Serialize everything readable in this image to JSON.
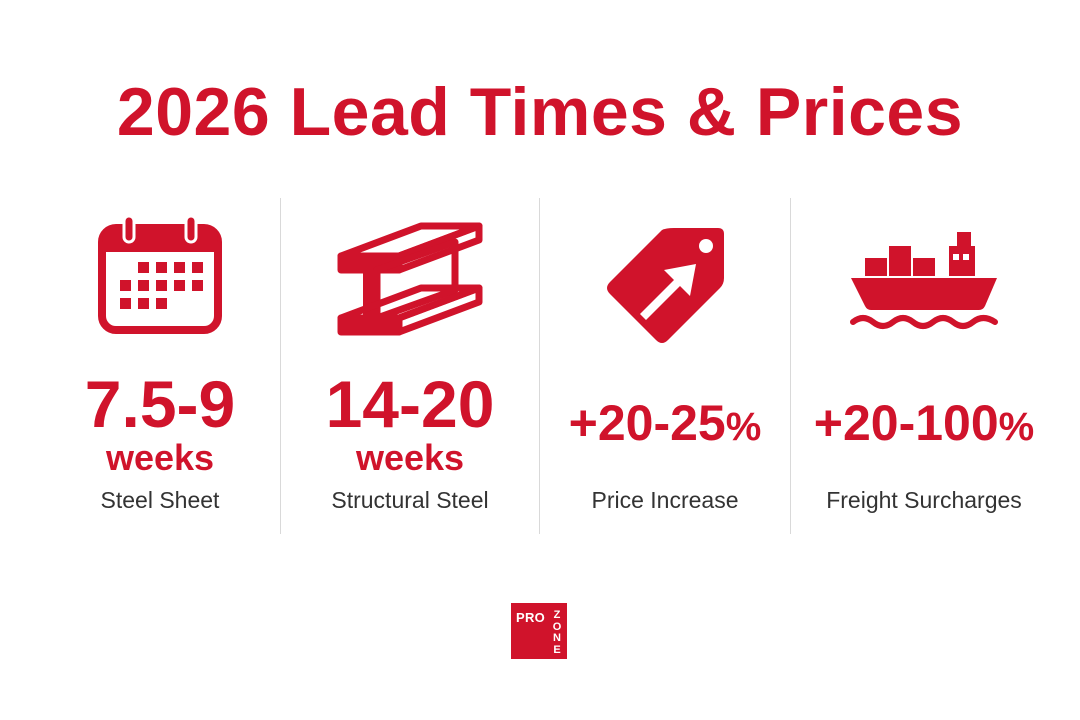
{
  "title": "2026 Lead Times & Prices",
  "colors": {
    "accent": "#d0132b",
    "label": "#333333",
    "divider": "#d9d9d9"
  },
  "stats": [
    {
      "icon": "calendar-icon",
      "value": "7.5-9",
      "unit": "weeks",
      "label": "Steel Sheet"
    },
    {
      "icon": "steel-beam-icon",
      "value": "14-20",
      "unit": "weeks",
      "label": "Structural Steel"
    },
    {
      "icon": "price-tag-arrow-icon",
      "value": "+20-25",
      "value_suffix": "%",
      "label": "Price Increase"
    },
    {
      "icon": "cargo-ship-icon",
      "value": "+20-100",
      "value_suffix": "%",
      "label": "Freight Surcharges"
    }
  ],
  "logo": {
    "line1": "PRO",
    "line2": [
      "Z",
      "O",
      "N",
      "E"
    ]
  }
}
